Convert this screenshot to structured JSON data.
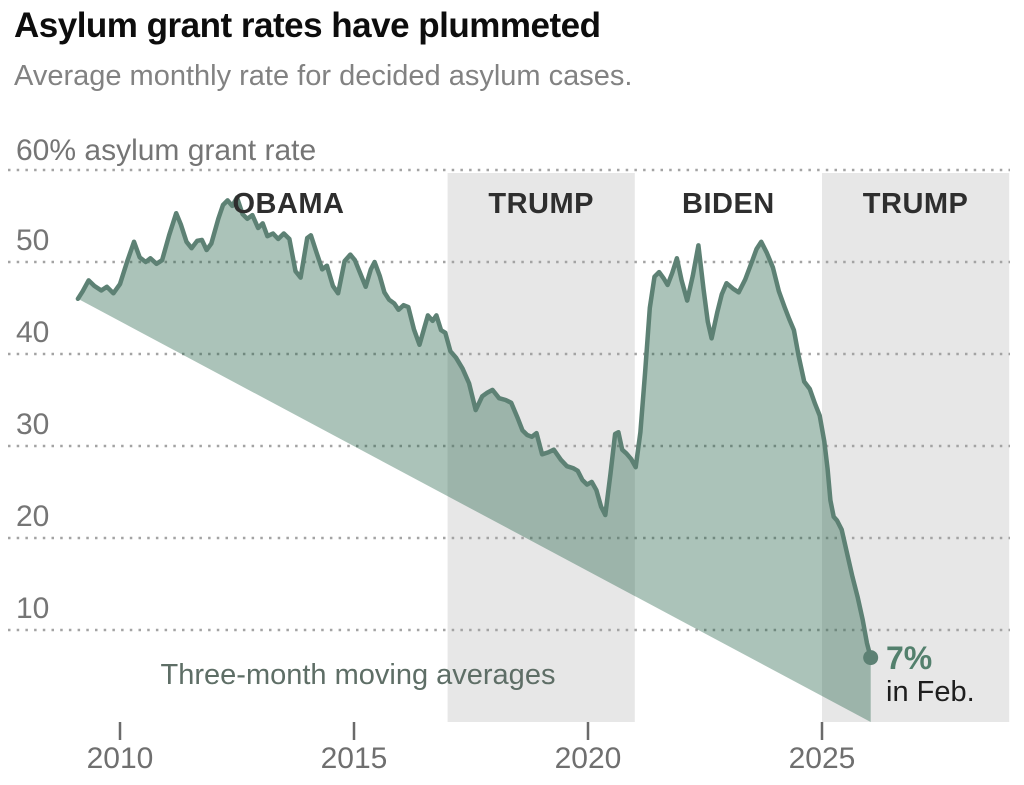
{
  "header": {
    "title": "Asylum grant rates have plummeted",
    "subtitle": "Average monthly rate for decided asylum cases."
  },
  "chart_data": {
    "type": "area",
    "title": "Asylum grant rates have plummeted",
    "subtitle": "Average monthly rate for decided asylum cases.",
    "xlabel": "",
    "ylabel": "asylum grant rate (%)",
    "xlim": [
      2007.6,
      2029.0
    ],
    "ylim": [
      0,
      60
    ],
    "grid": "dotted horizontal lines every 10%",
    "legend": "none",
    "y_axis": {
      "top_label": "60% asylum grant rate",
      "grid_values": [
        10,
        20,
        30,
        40,
        50,
        60
      ],
      "ticks": [
        {
          "value": 50,
          "label": "50"
        },
        {
          "value": 40,
          "label": "40"
        },
        {
          "value": 30,
          "label": "30"
        },
        {
          "value": 20,
          "label": "20"
        },
        {
          "value": 10,
          "label": "10"
        }
      ]
    },
    "x_axis": {
      "ticks": [
        {
          "value": 2010,
          "label": "2010"
        },
        {
          "value": 2015,
          "label": "2015"
        },
        {
          "value": 2020,
          "label": "2020"
        },
        {
          "value": 2025,
          "label": "2025"
        }
      ]
    },
    "eras": [
      {
        "label": "OBAMA",
        "start": 2009.1,
        "end": 2017.0,
        "shaded": false,
        "label_year": 2013.6
      },
      {
        "label": "TRUMP",
        "start": 2017.0,
        "end": 2021.0,
        "shaded": true,
        "label_year": 2019.0
      },
      {
        "label": "BIDEN",
        "start": 2021.0,
        "end": 2025.0,
        "shaded": false,
        "label_year": 2023.0
      },
      {
        "label": "TRUMP",
        "start": 2025.0,
        "end": 2029.0,
        "shaded": true,
        "label_year": 2027.0
      }
    ],
    "series": [
      {
        "name": "Asylum grant rate, three-month moving average (%)",
        "points": [
          [
            2009.1,
            46.0
          ],
          [
            2009.2,
            46.8
          ],
          [
            2009.33,
            48.0
          ],
          [
            2009.45,
            47.4
          ],
          [
            2009.6,
            46.9
          ],
          [
            2009.72,
            47.3
          ],
          [
            2009.86,
            46.6
          ],
          [
            2010.0,
            47.6
          ],
          [
            2010.15,
            50.0
          ],
          [
            2010.3,
            52.2
          ],
          [
            2010.42,
            50.5
          ],
          [
            2010.55,
            50.0
          ],
          [
            2010.65,
            50.4
          ],
          [
            2010.78,
            49.8
          ],
          [
            2010.9,
            50.2
          ],
          [
            2011.05,
            52.9
          ],
          [
            2011.2,
            55.3
          ],
          [
            2011.3,
            54.1
          ],
          [
            2011.42,
            52.2
          ],
          [
            2011.53,
            51.5
          ],
          [
            2011.65,
            52.3
          ],
          [
            2011.75,
            52.4
          ],
          [
            2011.85,
            51.3
          ],
          [
            2011.95,
            52.0
          ],
          [
            2012.1,
            54.7
          ],
          [
            2012.2,
            56.2
          ],
          [
            2012.3,
            56.7
          ],
          [
            2012.4,
            56.1
          ],
          [
            2012.5,
            57.0
          ],
          [
            2012.62,
            55.2
          ],
          [
            2012.72,
            54.7
          ],
          [
            2012.83,
            55.1
          ],
          [
            2012.95,
            53.7
          ],
          [
            2013.05,
            54.2
          ],
          [
            2013.15,
            52.8
          ],
          [
            2013.27,
            53.1
          ],
          [
            2013.38,
            52.5
          ],
          [
            2013.5,
            53.1
          ],
          [
            2013.62,
            52.5
          ],
          [
            2013.75,
            49.0
          ],
          [
            2013.86,
            48.3
          ],
          [
            2014.0,
            52.6
          ],
          [
            2014.08,
            52.9
          ],
          [
            2014.2,
            51.0
          ],
          [
            2014.32,
            49.2
          ],
          [
            2014.42,
            49.6
          ],
          [
            2014.55,
            47.4
          ],
          [
            2014.66,
            46.6
          ],
          [
            2014.8,
            50.1
          ],
          [
            2014.92,
            50.8
          ],
          [
            2015.02,
            50.2
          ],
          [
            2015.13,
            48.8
          ],
          [
            2015.25,
            47.3
          ],
          [
            2015.36,
            49.2
          ],
          [
            2015.44,
            50.0
          ],
          [
            2015.55,
            48.5
          ],
          [
            2015.65,
            46.7
          ],
          [
            2015.75,
            45.9
          ],
          [
            2015.86,
            45.5
          ],
          [
            2015.95,
            44.8
          ],
          [
            2016.06,
            45.3
          ],
          [
            2016.16,
            45.1
          ],
          [
            2016.28,
            42.7
          ],
          [
            2016.4,
            41.0
          ],
          [
            2016.5,
            42.8
          ],
          [
            2016.58,
            44.2
          ],
          [
            2016.68,
            43.6
          ],
          [
            2016.76,
            44.2
          ],
          [
            2016.86,
            42.6
          ],
          [
            2016.95,
            42.3
          ],
          [
            2017.06,
            40.3
          ],
          [
            2017.18,
            39.6
          ],
          [
            2017.32,
            38.4
          ],
          [
            2017.46,
            36.8
          ],
          [
            2017.6,
            33.9
          ],
          [
            2017.74,
            35.4
          ],
          [
            2017.85,
            35.8
          ],
          [
            2017.96,
            36.1
          ],
          [
            2018.1,
            35.2
          ],
          [
            2018.24,
            35.0
          ],
          [
            2018.36,
            34.7
          ],
          [
            2018.5,
            33.0
          ],
          [
            2018.6,
            31.7
          ],
          [
            2018.7,
            31.2
          ],
          [
            2018.8,
            31.0
          ],
          [
            2018.9,
            31.4
          ],
          [
            2019.02,
            29.1
          ],
          [
            2019.15,
            29.3
          ],
          [
            2019.27,
            29.6
          ],
          [
            2019.42,
            28.5
          ],
          [
            2019.55,
            27.8
          ],
          [
            2019.68,
            27.6
          ],
          [
            2019.78,
            27.3
          ],
          [
            2019.88,
            26.3
          ],
          [
            2019.98,
            25.8
          ],
          [
            2020.08,
            26.1
          ],
          [
            2020.18,
            25.2
          ],
          [
            2020.28,
            23.4
          ],
          [
            2020.37,
            22.5
          ],
          [
            2020.48,
            27.0
          ],
          [
            2020.58,
            31.3
          ],
          [
            2020.65,
            31.5
          ],
          [
            2020.73,
            29.6
          ],
          [
            2020.82,
            29.2
          ],
          [
            2020.92,
            28.6
          ],
          [
            2021.02,
            27.7
          ],
          [
            2021.12,
            31.5
          ],
          [
            2021.22,
            38.0
          ],
          [
            2021.32,
            45.0
          ],
          [
            2021.42,
            48.4
          ],
          [
            2021.52,
            48.9
          ],
          [
            2021.62,
            48.2
          ],
          [
            2021.7,
            47.5
          ],
          [
            2021.8,
            48.8
          ],
          [
            2021.9,
            50.4
          ],
          [
            2022.0,
            48.0
          ],
          [
            2022.12,
            45.8
          ],
          [
            2022.24,
            48.5
          ],
          [
            2022.36,
            51.8
          ],
          [
            2022.47,
            47.0
          ],
          [
            2022.56,
            43.5
          ],
          [
            2022.64,
            41.7
          ],
          [
            2022.76,
            44.5
          ],
          [
            2022.86,
            46.5
          ],
          [
            2022.96,
            47.7
          ],
          [
            2023.1,
            47.1
          ],
          [
            2023.22,
            46.7
          ],
          [
            2023.36,
            48.1
          ],
          [
            2023.5,
            50.0
          ],
          [
            2023.6,
            51.4
          ],
          [
            2023.7,
            52.2
          ],
          [
            2023.82,
            51.0
          ],
          [
            2023.95,
            49.4
          ],
          [
            2024.08,
            46.8
          ],
          [
            2024.2,
            45.1
          ],
          [
            2024.3,
            43.8
          ],
          [
            2024.4,
            42.6
          ],
          [
            2024.5,
            39.8
          ],
          [
            2024.62,
            37.0
          ],
          [
            2024.74,
            36.2
          ],
          [
            2024.85,
            34.6
          ],
          [
            2024.95,
            33.3
          ],
          [
            2025.05,
            30.5
          ],
          [
            2025.12,
            27.5
          ],
          [
            2025.18,
            24.1
          ],
          [
            2025.25,
            22.3
          ],
          [
            2025.32,
            21.9
          ],
          [
            2025.42,
            20.9
          ],
          [
            2025.52,
            18.7
          ],
          [
            2025.65,
            15.8
          ],
          [
            2025.76,
            13.6
          ],
          [
            2025.87,
            11.1
          ],
          [
            2025.96,
            8.6
          ],
          [
            2026.04,
            7.0
          ]
        ]
      }
    ],
    "annotations": {
      "method_note": "Three-month moving averages",
      "end_value_label": "7%",
      "end_value_sub": "in Feb.",
      "end_point": {
        "year": 2026.04,
        "value": 7
      }
    }
  },
  "colors": {
    "area_fill": "rgba(28,92,66,0.37)",
    "line": "#5d8174",
    "band": "#e7e7e7",
    "grid": "#a3a3a3",
    "tick": "#6a6a6a",
    "accent_text": "#53806d",
    "era_label": "#2e2e2e"
  }
}
